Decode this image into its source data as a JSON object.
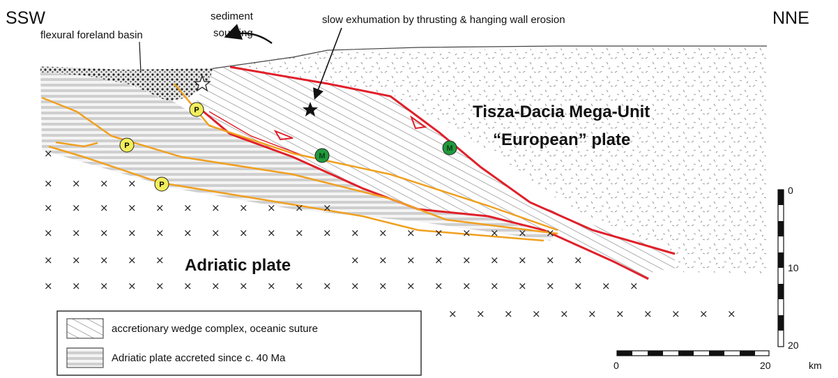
{
  "direction": {
    "left": "SSW",
    "right": "NNE"
  },
  "annotations": {
    "sediment_line1": "sediment",
    "sediment_line2": "sourcing",
    "basin": "flexural foreland basin",
    "exhumation": "slow exhumation by thrusting & hanging wall erosion"
  },
  "units": {
    "upper_line1": "Tisza-Dacia Mega-Unit",
    "upper_line2": "“European” plate",
    "lower": "Adriatic plate"
  },
  "markers": {
    "p_label": "P",
    "m_label": "M",
    "p_color": "#f2ee5a",
    "m_color": "#1f9a3c"
  },
  "colors": {
    "fault": "#e0202a",
    "thrust_orange": "#f0a020"
  },
  "legend": {
    "items": [
      {
        "label": "accretionary wedge complex, oceanic suture",
        "pattern": "diagonal-hatch"
      },
      {
        "label": "Adriatic plate accreted since c. 40 Ma",
        "pattern": "horizontal-lines"
      }
    ]
  },
  "scale_bars": {
    "vertical": {
      "ticks": [
        "0",
        "10",
        "20"
      ],
      "unit": "km"
    },
    "horizontal": {
      "ticks": [
        "0",
        "20"
      ],
      "unit": "km"
    }
  }
}
